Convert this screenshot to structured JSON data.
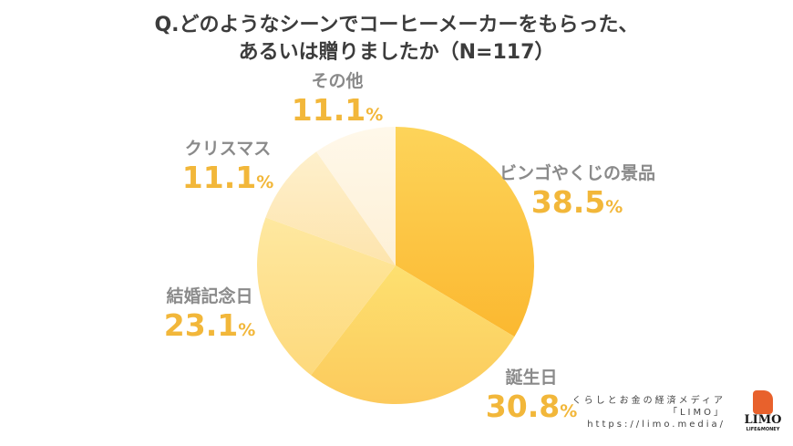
{
  "title": {
    "line1": "Q.どのようなシーンでコーヒーメーカーをもらった、",
    "line2": "あるいは贈りましたか（N=117）"
  },
  "chart_data": {
    "type": "pie",
    "title": "Q.どのようなシーンでコーヒーメーカーをもらった、あるいは贈りましたか（N=117）",
    "start_angle": "12 o'clock, clockwise",
    "categories": [
      "ビンゴやくじの景品",
      "誕生日",
      "結婚記念日",
      "クリスマス",
      "その他"
    ],
    "values": [
      38.5,
      30.8,
      23.1,
      11.1,
      11.1
    ],
    "unit": "%",
    "colors": [
      "#fcc53a",
      "#fdd66a",
      "#fde194",
      "#fdebbf",
      "#fef4df"
    ]
  },
  "labels": [
    {
      "name": "ビンゴやくじの景品",
      "value": "38.5",
      "unit": "%"
    },
    {
      "name": "誕生日",
      "value": "30.8",
      "unit": "%"
    },
    {
      "name": "結婚記念日",
      "value": "23.1",
      "unit": "%"
    },
    {
      "name": "クリスマス",
      "value": "11.1",
      "unit": "%"
    },
    {
      "name": "その他",
      "value": "11.1",
      "unit": "%"
    }
  ],
  "footer": {
    "tagline": "くらしとお金の経済メディア",
    "brand": "「LIMO」",
    "url": "https://limo.media/",
    "logo_word": "LIMO",
    "logo_sub": "LIFE&MONEY"
  }
}
